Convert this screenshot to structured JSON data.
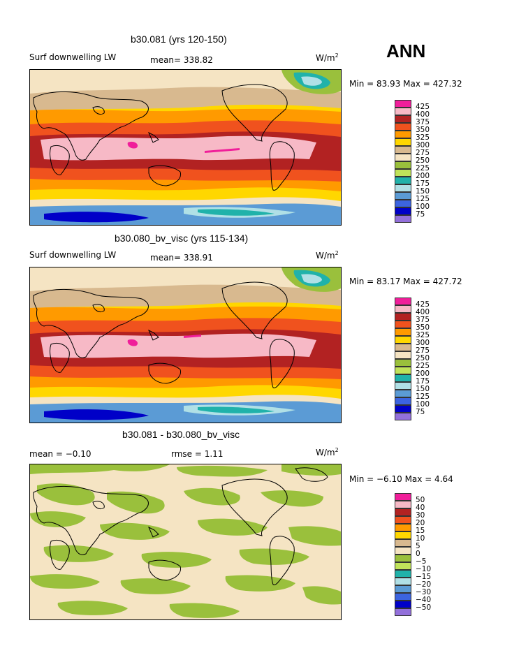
{
  "season": "ANN",
  "panels": [
    {
      "title": "b30.081 (yrs 120-150)",
      "variable": "Surf downwelling LW",
      "stat": "mean= 338.82",
      "units_base": "W/m",
      "units_exp": "2",
      "minmax": "Min =  83.93 Max = 427.32",
      "legend_labels": [
        "425",
        "400",
        "375",
        "350",
        "325",
        "300",
        "275",
        "250",
        "225",
        "200",
        "175",
        "150",
        "125",
        "100",
        "75"
      ]
    },
    {
      "title": "b30.080_bv_visc (yrs 115-134)",
      "variable": "Surf downwelling LW",
      "stat": "mean= 338.91",
      "units_base": "W/m",
      "units_exp": "2",
      "minmax": "Min =  83.17 Max = 427.72",
      "legend_labels": [
        "425",
        "400",
        "375",
        "350",
        "325",
        "300",
        "275",
        "250",
        "225",
        "200",
        "175",
        "150",
        "125",
        "100",
        "75"
      ]
    },
    {
      "title": "b30.081 - b30.080_bv_visc",
      "variable": "mean =   −0.10",
      "stat": "rmse =    1.11",
      "units_base": "W/m",
      "units_exp": "2",
      "minmax": "Min =  −6.10 Max =    4.64",
      "legend_labels": [
        "50",
        "40",
        "30",
        "20",
        "15",
        "10",
        "5",
        "0",
        "−5",
        "−10",
        "−15",
        "−20",
        "−30",
        "−40",
        "−50"
      ]
    }
  ],
  "colors": {
    "scale": [
      "#f01e9a",
      "#f7b9c6",
      "#b22222",
      "#f0521e",
      "#ff9a00",
      "#ffd700",
      "#f7e28a",
      "#d8b98f",
      "#f5e4c3",
      "#9ac03c",
      "#c0e35a",
      "#20b2aa",
      "#b0e0e6",
      "#5b9bd5",
      "#3c64e0",
      "#0000c8",
      "#9370db"
    ]
  }
}
